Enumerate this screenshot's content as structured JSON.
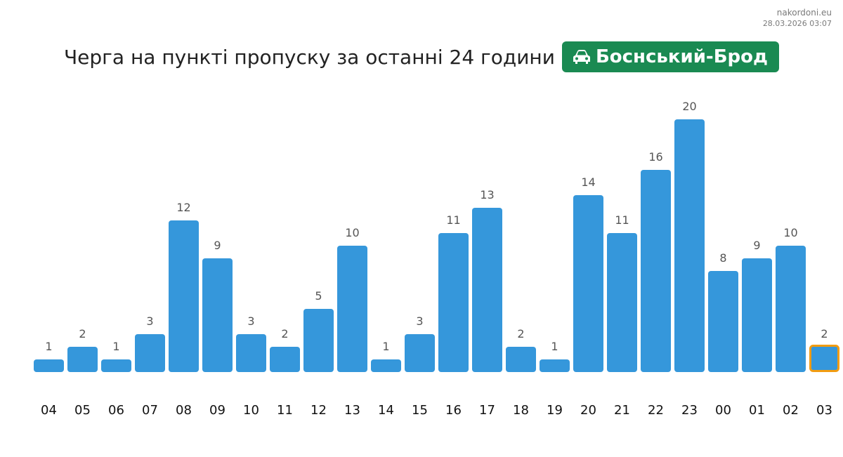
{
  "site": {
    "domain": "nakordoni.eu",
    "timestamp": "28.03.2026 03:07"
  },
  "header": {
    "title": "Черга на пункті пропуску за останні 24 години",
    "badge_label": "Боснський-Брод",
    "badge_icon": "car-icon",
    "badge_color": "#1a8a52"
  },
  "colors": {
    "bar": "#3597db",
    "highlight_border": "#f29c11"
  },
  "chart_data": {
    "type": "bar",
    "categories": [
      "04",
      "05",
      "06",
      "07",
      "08",
      "09",
      "10",
      "11",
      "12",
      "13",
      "14",
      "15",
      "16",
      "17",
      "18",
      "19",
      "20",
      "21",
      "22",
      "23",
      "00",
      "01",
      "02",
      "03"
    ],
    "values": [
      1,
      2,
      1,
      3,
      12,
      9,
      3,
      2,
      5,
      10,
      1,
      3,
      11,
      13,
      2,
      1,
      14,
      11,
      16,
      20,
      8,
      9,
      10,
      2
    ],
    "highlighted_category": "03",
    "ylim": [
      0,
      20
    ],
    "grid": false,
    "legend": "none",
    "title": "Черга на пункті пропуску за останні 24 години"
  }
}
